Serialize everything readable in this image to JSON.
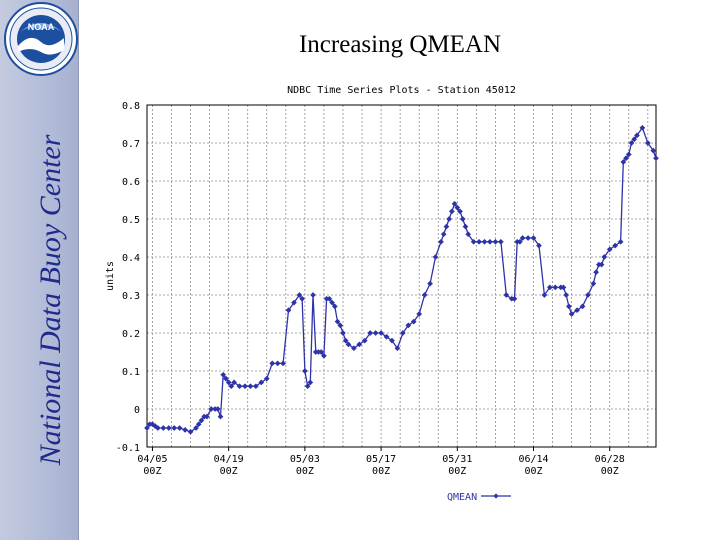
{
  "slide": {
    "title": "Increasing QMEAN",
    "sidebar_text": "National Data Buoy Center",
    "logo_text": "NOAA"
  },
  "colors": {
    "series": "#2f33a8",
    "sidebar_text": "#1f2a8c",
    "grid": "#8e8e8e",
    "logo_blue": "#1d4fa0"
  },
  "chart_data": {
    "type": "line",
    "title": "NDBC Time Series Plots - Station 45012",
    "xlabel": "",
    "ylabel": "units",
    "ylim": [
      -0.1,
      0.8
    ],
    "y_ticks": [
      -0.1,
      0,
      0.1,
      0.2,
      0.3,
      0.4,
      0.5,
      0.6,
      0.7,
      0.8
    ],
    "y_tick_labels": [
      "-0.1",
      "0",
      "0.1",
      "0.2",
      "0.3",
      "0.4",
      "0.5",
      "0.6",
      "0.7",
      "0.8"
    ],
    "x_tick_labels": [
      {
        "date": "04/05",
        "time": "00Z",
        "day": 7
      },
      {
        "date": "04/19",
        "time": "00Z",
        "day": 21
      },
      {
        "date": "05/03",
        "time": "00Z",
        "day": 35
      },
      {
        "date": "05/17",
        "time": "00Z",
        "day": 49
      },
      {
        "date": "05/31",
        "time": "00Z",
        "day": 63
      },
      {
        "date": "06/14",
        "time": "00Z",
        "day": 77
      },
      {
        "date": "06/28",
        "time": "00Z",
        "day": 91
      }
    ],
    "x_unit": "days since 03/29 00Z",
    "xlim": [
      6,
      99.5
    ],
    "grid": true,
    "legend": {
      "position": "bottom-center",
      "entries": [
        "QMEAN"
      ]
    },
    "series": [
      {
        "name": "QMEAN",
        "x": [
          6,
          6.5,
          7,
          7.5,
          8,
          9,
          10,
          11,
          12,
          13,
          14,
          15,
          15.5,
          16,
          16.5,
          17,
          17.8,
          18.5,
          19,
          19.5,
          20,
          20.5,
          21,
          21.5,
          22,
          23,
          24,
          25,
          26,
          27,
          28,
          29,
          30,
          31,
          32,
          33,
          34,
          34.5,
          35,
          35.5,
          36,
          36.5,
          37,
          37.5,
          38,
          38.5,
          39,
          39.5,
          40,
          40.5,
          41,
          41.5,
          42,
          42.5,
          43,
          44,
          45,
          46,
          47,
          48,
          49,
          50,
          51,
          52,
          53,
          54,
          55,
          56,
          57,
          58,
          59,
          60,
          60.5,
          61,
          61.5,
          62,
          62.5,
          63,
          63.5,
          64,
          64.5,
          65,
          66,
          67,
          68,
          69,
          70,
          71,
          72,
          73,
          73.5,
          74,
          74.5,
          75,
          76,
          77,
          78,
          79,
          80,
          81,
          82,
          82.5,
          83,
          83.5,
          84,
          85,
          86,
          87,
          88,
          88.5,
          89,
          89.5,
          90,
          91,
          92,
          93,
          93.5,
          94,
          94.5,
          95,
          95.5,
          96,
          97,
          98,
          99,
          99.5
        ],
        "y": [
          -0.05,
          -0.04,
          -0.04,
          -0.045,
          -0.05,
          -0.05,
          -0.05,
          -0.05,
          -0.05,
          -0.055,
          -0.06,
          -0.05,
          -0.04,
          -0.03,
          -0.02,
          -0.02,
          0.0,
          0.0,
          0.0,
          -0.02,
          0.09,
          0.08,
          0.07,
          0.06,
          0.07,
          0.06,
          0.06,
          0.06,
          0.06,
          0.07,
          0.08,
          0.12,
          0.12,
          0.12,
          0.26,
          0.28,
          0.3,
          0.29,
          0.1,
          0.06,
          0.07,
          0.3,
          0.15,
          0.15,
          0.15,
          0.14,
          0.29,
          0.29,
          0.28,
          0.27,
          0.23,
          0.22,
          0.2,
          0.18,
          0.17,
          0.16,
          0.17,
          0.18,
          0.2,
          0.2,
          0.2,
          0.19,
          0.18,
          0.16,
          0.2,
          0.22,
          0.23,
          0.25,
          0.3,
          0.33,
          0.4,
          0.44,
          0.46,
          0.48,
          0.5,
          0.52,
          0.54,
          0.53,
          0.52,
          0.5,
          0.48,
          0.46,
          0.44,
          0.44,
          0.44,
          0.44,
          0.44,
          0.44,
          0.3,
          0.29,
          0.29,
          0.44,
          0.44,
          0.45,
          0.45,
          0.45,
          0.43,
          0.3,
          0.32,
          0.32,
          0.32,
          0.32,
          0.3,
          0.27,
          0.25,
          0.26,
          0.27,
          0.3,
          0.33,
          0.36,
          0.38,
          0.38,
          0.4,
          0.42,
          0.43,
          0.44,
          0.65,
          0.66,
          0.67,
          0.7,
          0.71,
          0.72,
          0.74,
          0.7,
          0.68,
          0.66
        ]
      }
    ]
  }
}
